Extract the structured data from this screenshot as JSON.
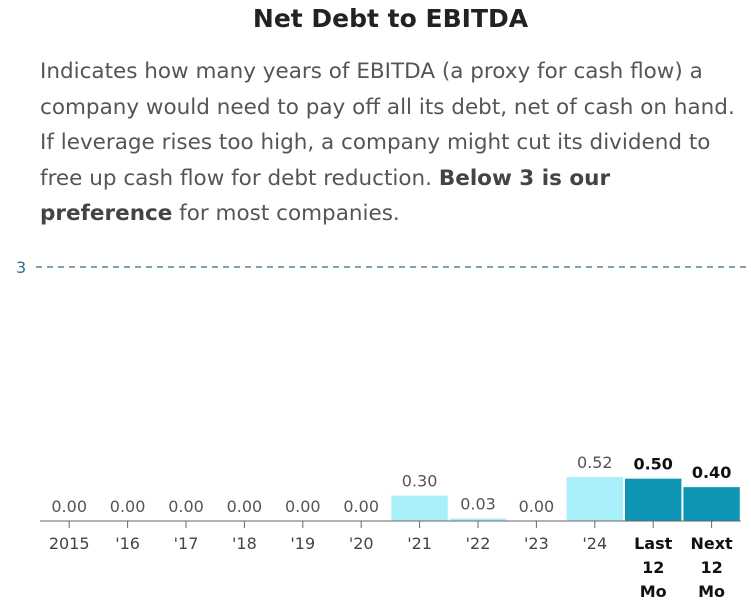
{
  "title": "Net Debt to EBITDA",
  "description": {
    "text_1": "Indicates how many years of EBITDA (a proxy for cash flow) a company would need to pay off all its debt, net of cash on hand. If leverage rises too high, a company might cut its dividend to free up cash flow for debt reduction. ",
    "bold": "Below 3 is our preference",
    "text_2": " for most companies."
  },
  "chart_data": {
    "type": "bar",
    "categories": [
      "2015",
      "'16",
      "'17",
      "'18",
      "'19",
      "'20",
      "'21",
      "'22",
      "'23",
      "'24",
      "Last 12 Mo",
      "Next 12 Mo"
    ],
    "values": [
      0.0,
      0.0,
      0.0,
      0.0,
      0.0,
      0.0,
      0.3,
      0.03,
      0.0,
      0.52,
      0.5,
      0.4
    ],
    "value_labels": [
      "0.00",
      "0.00",
      "0.00",
      "0.00",
      "0.00",
      "0.00",
      "0.30",
      "0.03",
      "0.00",
      "0.52",
      "0.50",
      "0.40"
    ],
    "highlighted": [
      false,
      false,
      false,
      false,
      false,
      false,
      false,
      false,
      false,
      false,
      true,
      true
    ],
    "reference_line": {
      "value": 3,
      "label": "3",
      "style": "dashed"
    },
    "ylim": [
      0,
      3
    ],
    "colors": {
      "historical": "#a8f0fa",
      "projected": "#0e95b4",
      "reference_line": "#2d6f86",
      "baseline": "#666666"
    }
  }
}
